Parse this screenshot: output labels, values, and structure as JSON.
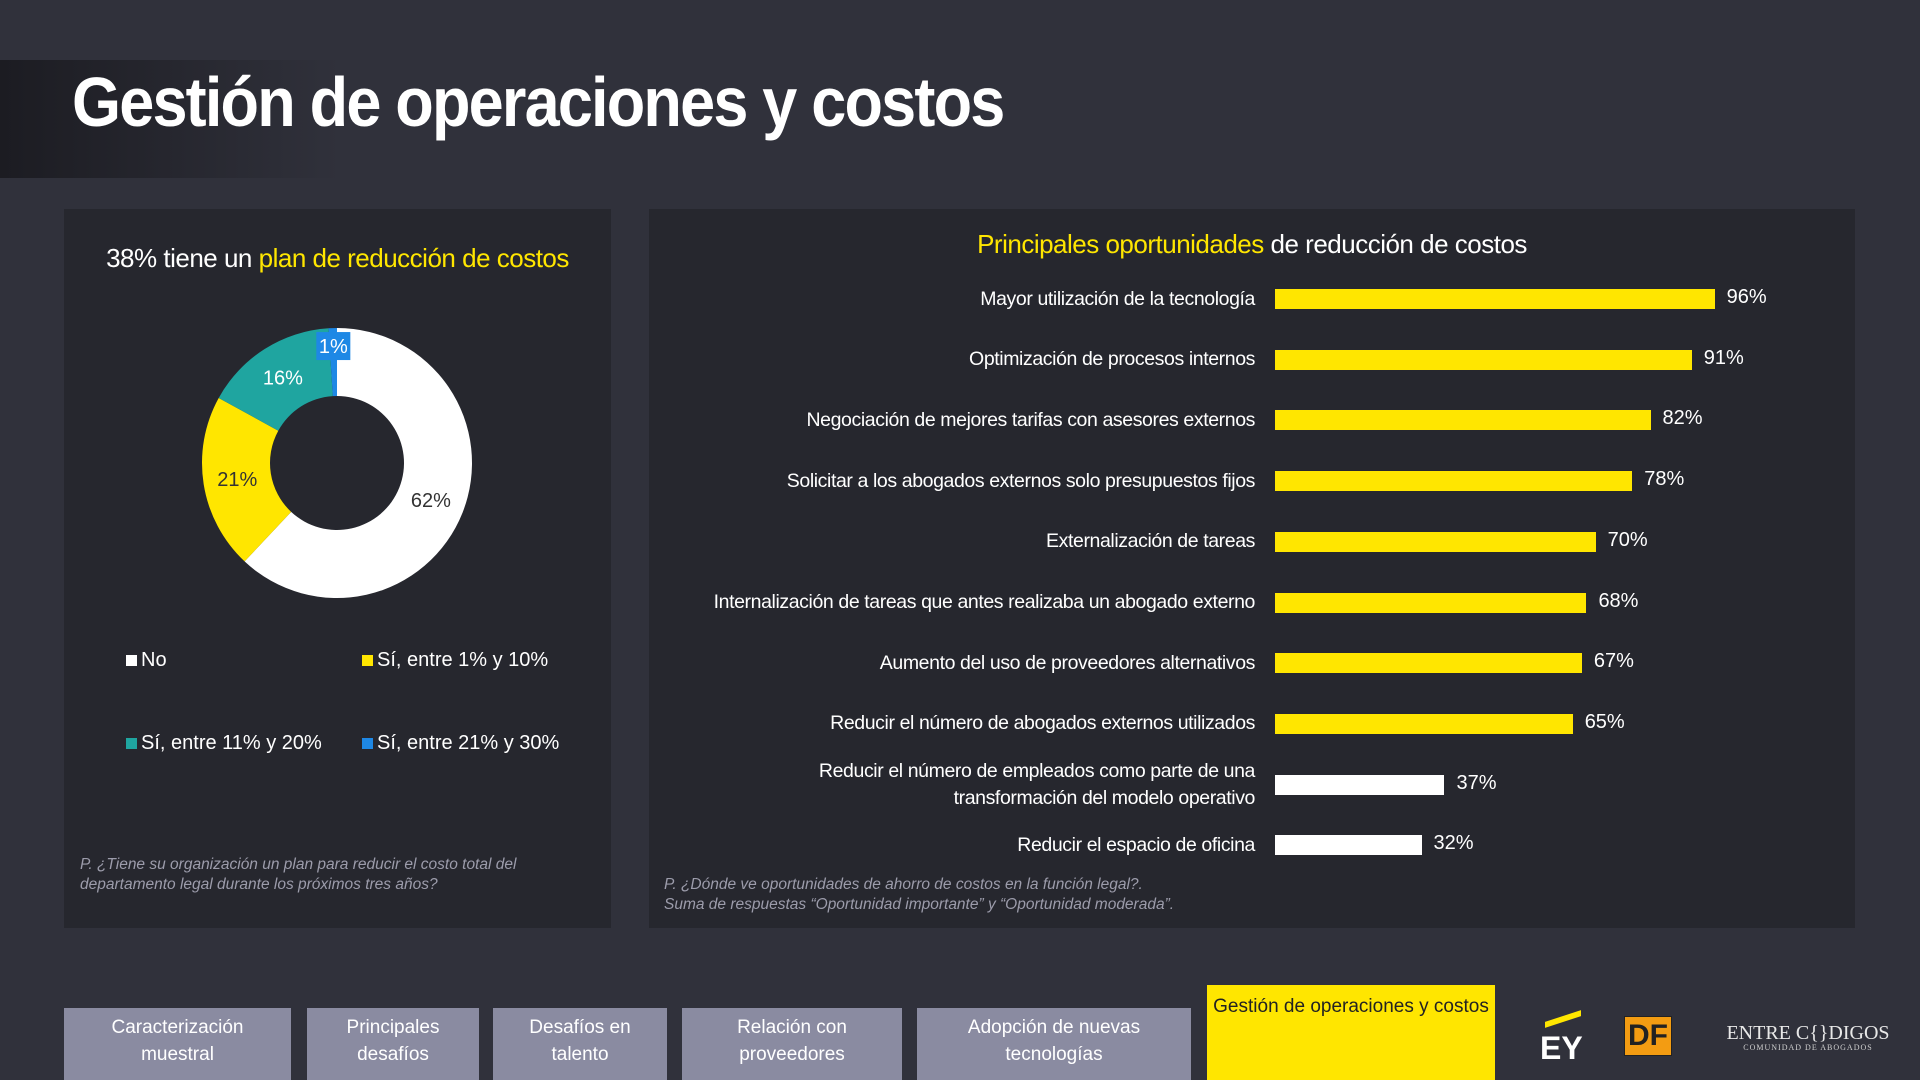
{
  "title": "Gestión de operaciones y costos",
  "chart_data": [
    {
      "type": "donut",
      "title": [
        "38% tiene un",
        "plan de reducción de costos"
      ],
      "categories": [
        "No",
        "Sí, entre 1% y 10%",
        "Sí, entre 11% y 20%",
        "Sí, entre 21% y 30%"
      ],
      "values": [
        62,
        21,
        16,
        1
      ],
      "value_labels": [
        "62%",
        "21%",
        "16%",
        "1%"
      ],
      "colors": [
        "#ffffff",
        "#ffe600",
        "#1fa5a0",
        "#1e88e5"
      ],
      "legend": "bottom",
      "note": [
        "P. ¿Tiene su organización un plan para reducir el costo total del",
        "departamento legal durante los próximos tres años?"
      ]
    },
    {
      "type": "hbar",
      "title": [
        "Principales oportunidades",
        "de reducción de costos"
      ],
      "categories": [
        "Mayor utilización de la tecnología",
        "Optimización de procesos internos",
        "Negociación de mejores tarifas con asesores externos",
        "Solicitar a los abogados externos solo presupuestos fijos",
        "Externalización de tareas",
        "Internalización de tareas que antes realizaba un abogado externo",
        "Aumento del uso de proveedores alternativos",
        "Reducir el número de abogados externos utilizados",
        "Reducir el número de empleados como parte de una\ntransformación del modelo operativo",
        "Reducir el espacio de oficina"
      ],
      "values": [
        96,
        91,
        82,
        78,
        70,
        68,
        67,
        65,
        37,
        32
      ],
      "value_labels": [
        "96%",
        "91%",
        "82%",
        "78%",
        "70%",
        "68%",
        "67%",
        "65%",
        "37%",
        "32%"
      ],
      "colors": [
        "#ffe600",
        "#ffe600",
        "#ffe600",
        "#ffe600",
        "#ffe600",
        "#ffe600",
        "#ffe600",
        "#ffe600",
        "#ffffff",
        "#ffffff"
      ],
      "note": [
        "P. ¿Dónde ve oportunidades de ahorro de costos en la función legal?.",
        "Suma de respuestas “Oportunidad importante” y “Oportunidad moderada”."
      ]
    }
  ],
  "tabs": [
    "Caracterización\nmuestral",
    "Principales\ndesafíos",
    "Desafíos en\ntalento",
    "Relación con\nproveedores",
    "Adopción de nuevas\ntecnologías",
    "Gestión de operaciones y costos"
  ],
  "active_tab": 5,
  "logos": [
    "EY",
    "DF",
    "ENTRE C{}DIGOS",
    "COMUNIDAD DE ABOGADOS"
  ]
}
